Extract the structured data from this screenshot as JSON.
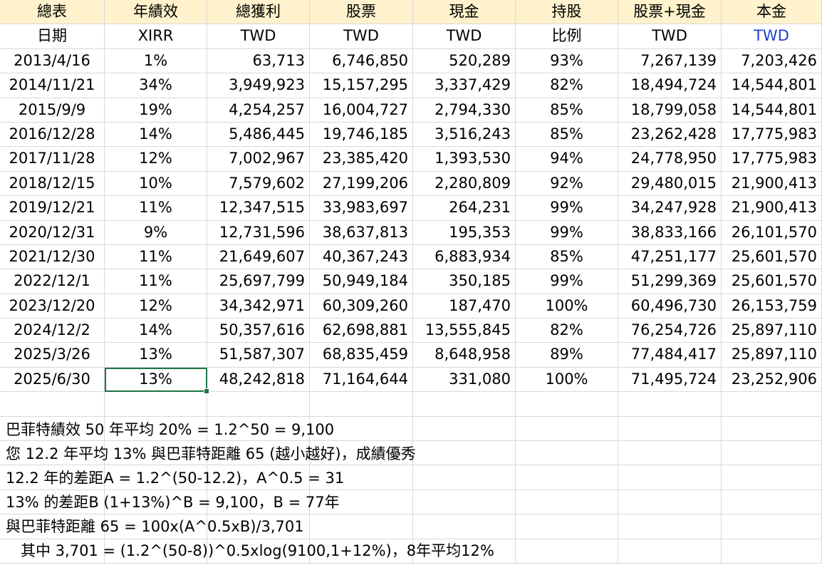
{
  "header_row1": [
    "總表",
    "年績效",
    "總獲利",
    "股票",
    "現金",
    "持股",
    "股票+現金",
    "本金"
  ],
  "header_row2": [
    "日期",
    "XIRR",
    "TWD",
    "TWD",
    "TWD",
    "比例",
    "TWD",
    "TWD"
  ],
  "rows": [
    [
      "2013/4/16",
      "1%",
      "63,713",
      "6,746,850",
      "520,289",
      "93%",
      "7,267,139",
      "7,203,426"
    ],
    [
      "2014/11/21",
      "34%",
      "3,949,923",
      "15,157,295",
      "3,337,429",
      "82%",
      "18,494,724",
      "14,544,801"
    ],
    [
      "2015/9/9",
      "19%",
      "4,254,257",
      "16,004,727",
      "2,794,330",
      "85%",
      "18,799,058",
      "14,544,801"
    ],
    [
      "2016/12/28",
      "14%",
      "5,486,445",
      "19,746,185",
      "3,516,243",
      "85%",
      "23,262,428",
      "17,775,983"
    ],
    [
      "2017/11/28",
      "12%",
      "7,002,967",
      "23,385,420",
      "1,393,530",
      "94%",
      "24,778,950",
      "17,775,983"
    ],
    [
      "2018/12/15",
      "10%",
      "7,579,602",
      "27,199,206",
      "2,280,809",
      "92%",
      "29,480,015",
      "21,900,413"
    ],
    [
      "2019/12/21",
      "11%",
      "12,347,515",
      "33,983,697",
      "264,231",
      "99%",
      "34,247,928",
      "21,900,413"
    ],
    [
      "2020/12/31",
      "9%",
      "12,731,596",
      "38,637,813",
      "195,353",
      "99%",
      "38,833,166",
      "26,101,570"
    ],
    [
      "2021/12/30",
      "11%",
      "21,649,607",
      "40,367,243",
      "6,883,934",
      "85%",
      "47,251,177",
      "25,601,570"
    ],
    [
      "2022/12/1",
      "11%",
      "25,697,799",
      "50,949,184",
      "350,185",
      "99%",
      "51,299,369",
      "25,601,570"
    ],
    [
      "2023/12/20",
      "12%",
      "34,342,971",
      "60,309,260",
      "187,470",
      "100%",
      "60,496,730",
      "26,153,759"
    ],
    [
      "2024/12/2",
      "14%",
      "50,357,616",
      "62,698,881",
      "13,555,845",
      "82%",
      "76,254,726",
      "25,897,110"
    ],
    [
      "2025/3/26",
      "13%",
      "51,587,307",
      "68,835,459",
      "8,648,958",
      "89%",
      "77,484,417",
      "25,897,110"
    ],
    [
      "2025/6/30",
      "13%",
      "48,242,818",
      "71,164,644",
      "331,080",
      "100%",
      "71,495,724",
      "23,252,906"
    ]
  ],
  "notes": [
    "巴菲特績效 50 年平均 20% = 1.2^50 = 9,100",
    "您 12.2 年平均 13% 與巴菲特距離 65 (越小越好)，成績優秀",
    "12.2 年的差距A = 1.2^(50-12.2)，A^0.5 = 31",
    "13% 的差距B (1+13%)^B = 9,100，B = 77年",
    "與巴菲特距離 65 = 100x(A^0.5xB)/3,701",
    "　其中 3,701 = (1.2^(50-8))^0.5xlog(9100,1+12%)，8年平均12%"
  ],
  "colors": {
    "header_fill": "#fff2cc",
    "blue_text": "#1f3fd0",
    "selection": "#217346"
  }
}
